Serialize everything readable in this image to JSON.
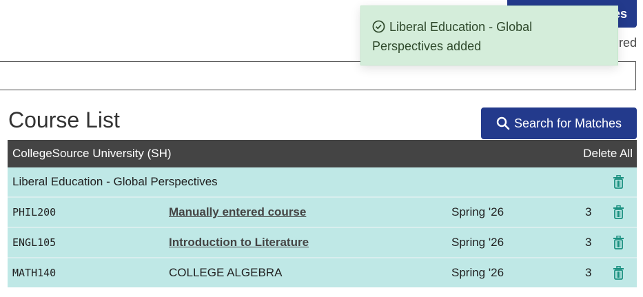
{
  "top": {
    "button_fragment": "es",
    "text_fragment": "red"
  },
  "title": "Course List",
  "search_button": "Search for Matches",
  "table": {
    "institution": "CollegeSource University (SH)",
    "delete_all": "Delete All",
    "group": "Liberal Education - Global Perspectives",
    "rows": [
      {
        "code": "PHIL200",
        "name": "Manually entered course",
        "link": true,
        "term": "Spring '26",
        "credits": "3"
      },
      {
        "code": "ENGL105",
        "name": "Introduction to Literature",
        "link": true,
        "term": "Spring '26",
        "credits": "3"
      },
      {
        "code": "MATH140",
        "name": "COLLEGE ALGEBRA",
        "link": false,
        "term": "Spring '26",
        "credits": "3"
      }
    ]
  },
  "toast": {
    "message": "Liberal Education - Global Perspectives added"
  },
  "colors": {
    "primary": "#233a8c",
    "row_bg": "#bfe8e6",
    "header_bg": "#444444",
    "trash": "#1a9080",
    "toast_bg": "#d4edda"
  }
}
